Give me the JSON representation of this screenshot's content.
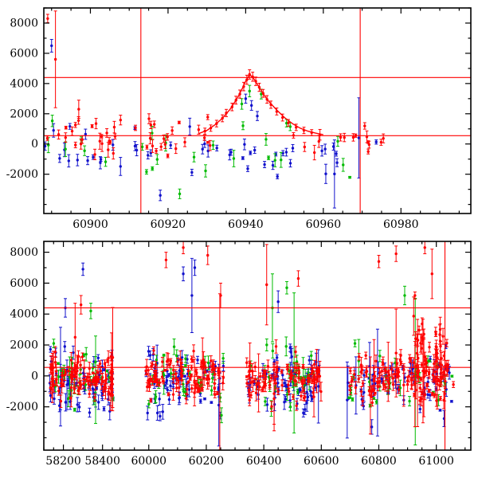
{
  "figure": {
    "background": "#ffffff",
    "frame_color": "#000000",
    "reference_line_color": "#ff0000",
    "tick_label_color": "#000000",
    "series_colors": {
      "red": "#ff0000",
      "green": "#00bb00",
      "blue": "#1111cc"
    }
  },
  "chart_data": [
    {
      "id": "flare-zoom-panel",
      "type": "scatter",
      "title": "",
      "xlabel": "",
      "ylabel": "",
      "seed": 42,
      "xlim": [
        60888,
        60998
      ],
      "x_segments": [
        {
          "range": [
            60888,
            60998
          ],
          "frac": [
            0,
            1
          ]
        }
      ],
      "ylim": [
        -4600,
        9000
      ],
      "xticks": [
        60900,
        60920,
        60940,
        60960,
        60980
      ],
      "x_minor_step": 5,
      "yticks": [
        -2000,
        0,
        2000,
        4000,
        6000,
        8000
      ],
      "y_minor_step": 1000,
      "reference_lines": {
        "horizontal": [
          4400,
          550
        ],
        "vertical": [
          60913,
          60969.5
        ]
      },
      "model_curve": [
        [
          60928,
          700
        ],
        [
          60930,
          900
        ],
        [
          60932,
          1250
        ],
        [
          60934,
          1700
        ],
        [
          60936,
          2300
        ],
        [
          60937,
          2700
        ],
        [
          60938,
          3100
        ],
        [
          60939,
          3600
        ],
        [
          60940,
          4150
        ],
        [
          60941,
          4600
        ],
        [
          60942,
          4350
        ],
        [
          60943,
          3950
        ],
        [
          60944,
          3550
        ],
        [
          60945,
          3150
        ],
        [
          60946,
          2800
        ],
        [
          60948,
          2250
        ],
        [
          60950,
          1750
        ],
        [
          60952,
          1350
        ],
        [
          60954,
          1050
        ],
        [
          60956,
          850
        ],
        [
          60958,
          720
        ],
        [
          60960,
          620
        ]
      ],
      "series": [
        {
          "name": "blue",
          "color": "#1111cc",
          "clusters": [
            {
              "x0": 60888,
              "x1": 60974,
              "n": 50,
              "y_mean": -750,
              "y_sigma": 950,
              "y_min": -3300,
              "y_max": 1500,
              "err_mean": 300,
              "err_sigma": 140,
              "wide_err_frac": 0.06
            }
          ],
          "points": [
            [
              60890,
              6500,
              420
            ],
            [
              60940,
              3000,
              300
            ],
            [
              60941.5,
              2550,
              320
            ],
            [
              60943,
              1850,
              300
            ],
            [
              60918,
              -3400,
              350
            ]
          ]
        },
        {
          "name": "green",
          "color": "#00bb00",
          "clusters": [
            {
              "x0": 60889,
              "x1": 60968,
              "n": 26,
              "y_mean": -350,
              "y_sigma": 900,
              "y_min": -3400,
              "y_max": 1800,
              "err_mean": 300,
              "err_sigma": 150,
              "wide_err_frac": 0.06
            }
          ],
          "points": [
            [
              60939,
              2650,
              350
            ],
            [
              60941,
              3500,
              380
            ],
            [
              60944,
              3300,
              320
            ],
            [
              60923,
              -3300,
              320
            ]
          ]
        },
        {
          "name": "red",
          "color": "#ff0000",
          "clusters": [
            {
              "x0": 60888,
              "x1": 60931,
              "n": 46,
              "y_mean": 350,
              "y_sigma": 550,
              "y_min": -1600,
              "y_max": 2400,
              "err_mean": 250,
              "err_sigma": 110,
              "wide_err_frac": 0.05
            },
            {
              "x0": 60952,
              "x1": 60976,
              "n": 16,
              "y_mean": 250,
              "y_sigma": 500,
              "y_min": -1200,
              "y_max": 1500,
              "err_mean": 250,
              "err_sigma": 110,
              "wide_err_frac": 0.05
            }
          ],
          "points": [
            [
              60929.5,
              850,
              200
            ],
            [
              60931,
              1050,
              210
            ],
            [
              60932.5,
              1350,
              220
            ],
            [
              60934,
              1700,
              230
            ],
            [
              60935,
              2050,
              240
            ],
            [
              60936.5,
              2450,
              250
            ],
            [
              60937.5,
              2900,
              260
            ],
            [
              60938.5,
              3300,
              270
            ],
            [
              60939.5,
              3800,
              280
            ],
            [
              60940.3,
              4250,
              300
            ],
            [
              60941,
              4600,
              310
            ],
            [
              60941.8,
              4450,
              300
            ],
            [
              60942.6,
              4150,
              280
            ],
            [
              60943.5,
              3750,
              270
            ],
            [
              60944.5,
              3350,
              260
            ],
            [
              60945.5,
              2950,
              250
            ],
            [
              60946.5,
              2600,
              240
            ],
            [
              60948,
              2150,
              230
            ],
            [
              60949.5,
              1750,
              230
            ],
            [
              60951,
              1400,
              220
            ],
            [
              60953,
              1100,
              210
            ],
            [
              60955,
              900,
              210
            ],
            [
              60957,
              750,
              200
            ],
            [
              60889,
              8300,
              280
            ],
            [
              60891,
              5600,
              3200
            ],
            [
              60897,
              2300,
              600
            ]
          ]
        }
      ]
    },
    {
      "id": "full-lightcurve-panel",
      "type": "scatter",
      "title": "",
      "xlabel": "",
      "ylabel": "",
      "seed": 7,
      "xlim": [
        58100,
        61120
      ],
      "x_segments": [
        {
          "range": [
            58100,
            58460
          ],
          "frac": [
            0,
            0.165
          ]
        },
        {
          "range": [
            59880,
            61120
          ],
          "frac": [
            0.165,
            1.0
          ]
        }
      ],
      "ylim": [
        -4800,
        8700
      ],
      "xticks": [
        58200,
        58400,
        60000,
        60200,
        60400,
        60600,
        60800,
        61000
      ],
      "x_minor_step": 50,
      "yticks": [
        -2000,
        0,
        2000,
        4000,
        6000,
        8000
      ],
      "y_minor_step": 1000,
      "reference_lines": {
        "horizontal": [
          4400,
          550
        ],
        "vertical": [
          61030
        ]
      },
      "model_curve": [],
      "series": [
        {
          "name": "blue",
          "color": "#1111cc",
          "clusters": [
            {
              "x0": 58130,
              "x1": 58455,
              "n": 65,
              "y_mean": -500,
              "y_sigma": 950,
              "y_min": -3300,
              "y_max": 1900,
              "err_mean": 300,
              "err_sigma": 140,
              "wide_err_frac": 0.06
            },
            {
              "x0": 59990,
              "x1": 60260,
              "n": 65,
              "y_mean": -500,
              "y_sigma": 950,
              "y_min": -3300,
              "y_max": 1900,
              "err_mean": 300,
              "err_sigma": 140,
              "wide_err_frac": 0.06
            },
            {
              "x0": 60340,
              "x1": 60600,
              "n": 65,
              "y_mean": -500,
              "y_sigma": 950,
              "y_min": -3300,
              "y_max": 1900,
              "err_mean": 300,
              "err_sigma": 140,
              "wide_err_frac": 0.06
            },
            {
              "x0": 60690,
              "x1": 61060,
              "n": 65,
              "y_mean": -500,
              "y_sigma": 950,
              "y_min": -3300,
              "y_max": 1900,
              "err_mean": 300,
              "err_sigma": 140,
              "wide_err_frac": 0.06
            }
          ],
          "points": [
            [
              58300,
              6900,
              400
            ],
            [
              60160,
              7000,
              500
            ],
            [
              60150,
              5200,
              2400
            ],
            [
              58210,
              4400,
              600
            ],
            [
              60450,
              4800,
              700
            ],
            [
              60120,
              6600,
              450
            ]
          ]
        },
        {
          "name": "green",
          "color": "#00bb00",
          "clusters": [
            {
              "x0": 58130,
              "x1": 58455,
              "n": 32,
              "y_mean": -300,
              "y_sigma": 950,
              "y_min": -3400,
              "y_max": 2100,
              "err_mean": 300,
              "err_sigma": 150,
              "wide_err_frac": 0.06
            },
            {
              "x0": 59990,
              "x1": 60260,
              "n": 32,
              "y_mean": -300,
              "y_sigma": 950,
              "y_min": -3400,
              "y_max": 2100,
              "err_mean": 300,
              "err_sigma": 150,
              "wide_err_frac": 0.06
            },
            {
              "x0": 60340,
              "x1": 60600,
              "n": 32,
              "y_mean": -300,
              "y_sigma": 950,
              "y_min": -3400,
              "y_max": 2100,
              "err_mean": 300,
              "err_sigma": 150,
              "wide_err_frac": 0.06
            },
            {
              "x0": 60690,
              "x1": 61060,
              "n": 32,
              "y_mean": -300,
              "y_sigma": 950,
              "y_min": -3400,
              "y_max": 2100,
              "err_mean": 300,
              "err_sigma": 150,
              "wide_err_frac": 0.06
            }
          ],
          "points": [
            [
              60480,
              5700,
              400
            ],
            [
              58340,
              4200,
              500
            ],
            [
              60890,
              5200,
              600
            ],
            [
              60430,
              4400,
              2200
            ]
          ]
        },
        {
          "name": "red",
          "color": "#ff0000",
          "clusters": [
            {
              "x0": 58130,
              "x1": 58455,
              "n": 105,
              "y_mean": -100,
              "y_sigma": 700,
              "y_min": -2700,
              "y_max": 2300,
              "err_mean": 260,
              "err_sigma": 120,
              "wide_err_frac": 0.07
            },
            {
              "x0": 59990,
              "x1": 60260,
              "n": 105,
              "y_mean": -100,
              "y_sigma": 700,
              "y_min": -2700,
              "y_max": 2300,
              "err_mean": 260,
              "err_sigma": 120,
              "wide_err_frac": 0.07
            },
            {
              "x0": 60340,
              "x1": 60600,
              "n": 95,
              "y_mean": -100,
              "y_sigma": 700,
              "y_min": -2700,
              "y_max": 2300,
              "err_mean": 260,
              "err_sigma": 120,
              "wide_err_frac": 0.07
            },
            {
              "x0": 60690,
              "x1": 61060,
              "n": 115,
              "y_mean": -100,
              "y_sigma": 700,
              "y_min": -2700,
              "y_max": 2300,
              "err_mean": 260,
              "err_sigma": 120,
              "wide_err_frac": 0.07
            },
            {
              "x0": 60920,
              "x1": 61040,
              "n": 55,
              "y_mean": 1100,
              "y_sigma": 1600,
              "y_min": -1600,
              "y_max": 5200,
              "err_mean": 300,
              "err_sigma": 140,
              "wide_err_frac": 0.1
            }
          ],
          "points": [
            [
              60060,
              7500,
              500
            ],
            [
              60120,
              8300,
              400
            ],
            [
              60205,
              7800,
              600
            ],
            [
              60410,
              5900,
              2600
            ],
            [
              60520,
              6300,
              500
            ],
            [
              60800,
              7400,
              400
            ],
            [
              60860,
              7900,
              500
            ],
            [
              60960,
              8300,
              400
            ],
            [
              58290,
              4600,
              600
            ],
            [
              60985,
              6600,
              1600
            ],
            [
              60250,
              5200,
              800
            ],
            [
              58260,
              2500,
              2200
            ]
          ]
        }
      ]
    }
  ]
}
